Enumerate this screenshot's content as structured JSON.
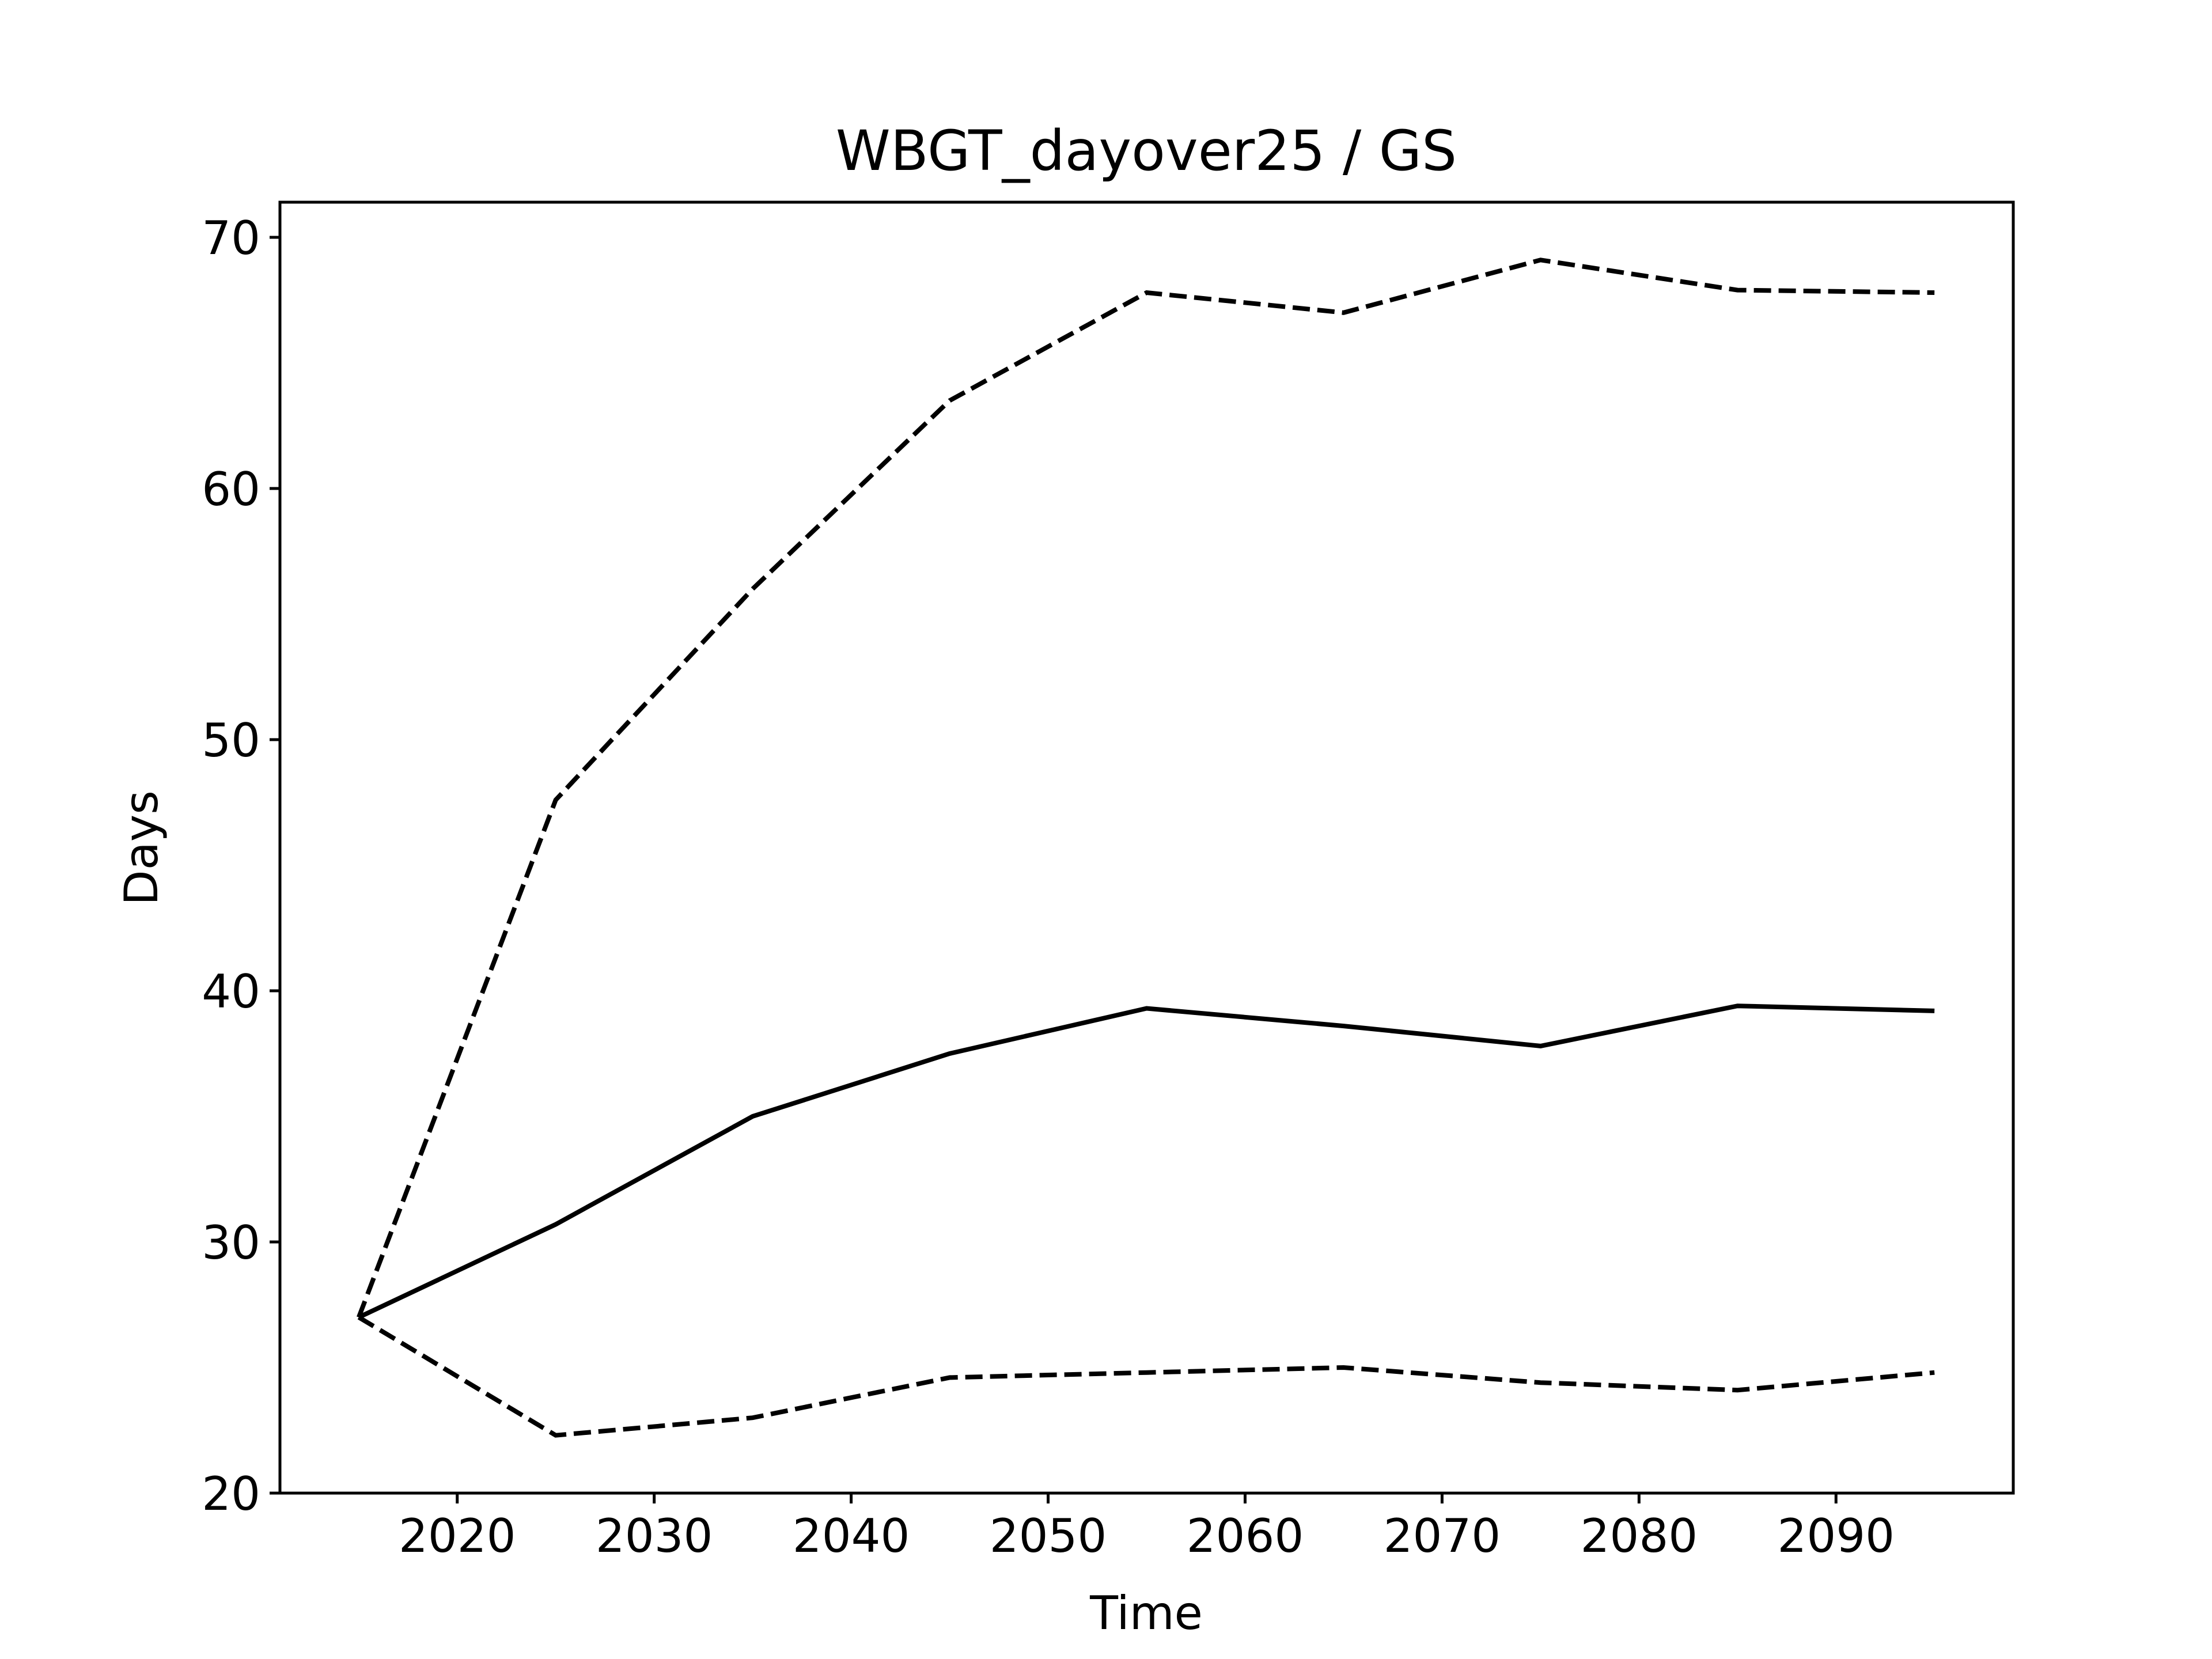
{
  "chart_data": {
    "type": "line",
    "title": "WBGT_dayover25 / GS",
    "xlabel": "Time",
    "ylabel": "Days",
    "xlim": [
      2011,
      2099
    ],
    "ylim": [
      20,
      71.4
    ],
    "xticks": [
      2020,
      2030,
      2040,
      2050,
      2060,
      2070,
      2080,
      2090
    ],
    "yticks": [
      20,
      30,
      40,
      50,
      60,
      70
    ],
    "grid": false,
    "x": [
      2015,
      2025,
      2035,
      2045,
      2055,
      2065,
      2075,
      2085,
      2095
    ],
    "series": [
      {
        "style": "dashed",
        "color": "#000000",
        "values": [
          27.0,
          47.6,
          56.0,
          63.5,
          67.8,
          67.0,
          69.1,
          67.9,
          67.8
        ]
      },
      {
        "style": "solid",
        "color": "#000000",
        "values": [
          27.0,
          30.7,
          35.0,
          37.5,
          39.3,
          38.6,
          37.8,
          39.4,
          39.2
        ]
      },
      {
        "style": "dashed",
        "color": "#000000",
        "values": [
          27.0,
          22.3,
          23.0,
          24.6,
          24.8,
          25.0,
          24.4,
          24.1,
          24.8
        ]
      }
    ]
  }
}
